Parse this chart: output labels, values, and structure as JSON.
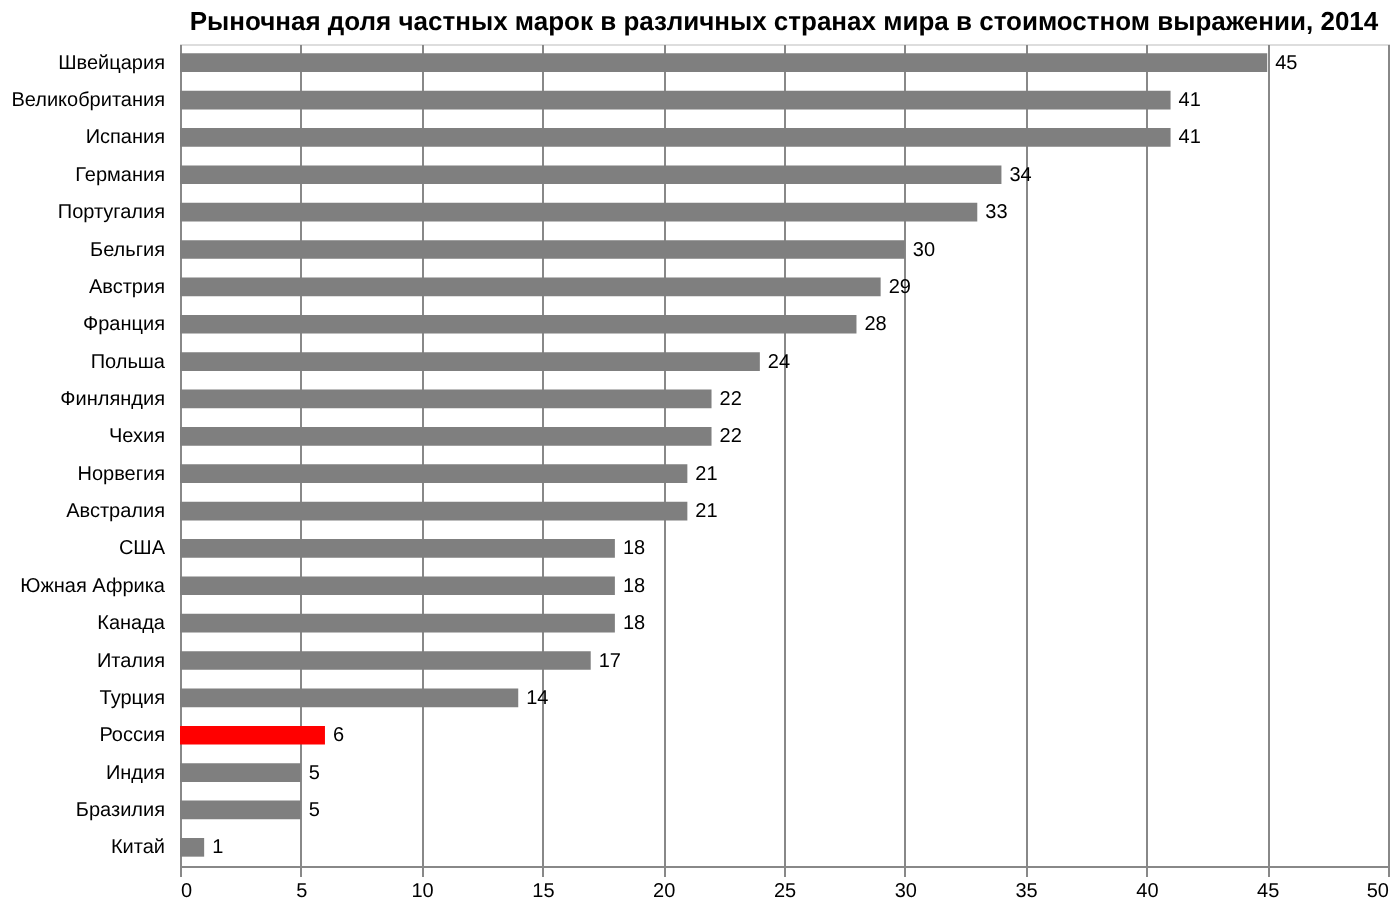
{
  "chart_data": {
    "type": "bar",
    "orientation": "horizontal",
    "title": "Рыночная доля частных марок в различных странах мира в стоимостном выражении, 2014",
    "categories": [
      "Швейцария",
      "Великобритания",
      "Испания",
      "Германия",
      "Португалия",
      "Бельгия",
      "Австрия",
      "Франция",
      "Польша",
      "Финляндия",
      "Чехия",
      "Норвегия",
      "Австралия",
      "США",
      "Южная Африка",
      "Канада",
      "Италия",
      "Турция",
      "Россия",
      "Индия",
      "Бразилия",
      "Китай"
    ],
    "values": [
      45,
      41,
      41,
      34,
      33,
      30,
      29,
      28,
      24,
      22,
      22,
      21,
      21,
      18,
      18,
      18,
      17,
      14,
      6,
      5,
      5,
      1
    ],
    "colors": [
      "#7f7f7f",
      "#7f7f7f",
      "#7f7f7f",
      "#7f7f7f",
      "#7f7f7f",
      "#7f7f7f",
      "#7f7f7f",
      "#7f7f7f",
      "#7f7f7f",
      "#7f7f7f",
      "#7f7f7f",
      "#7f7f7f",
      "#7f7f7f",
      "#7f7f7f",
      "#7f7f7f",
      "#7f7f7f",
      "#7f7f7f",
      "#7f7f7f",
      "#ff0000",
      "#7f7f7f",
      "#7f7f7f",
      "#7f7f7f"
    ],
    "xlim": [
      0,
      50
    ],
    "xticks": [
      0,
      5,
      10,
      15,
      20,
      25,
      30,
      35,
      40,
      45,
      50
    ],
    "grid": "x",
    "data_labels": true
  }
}
